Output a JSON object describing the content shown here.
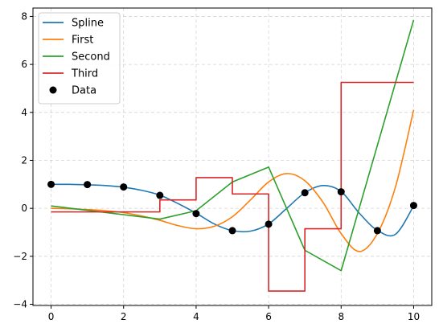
{
  "chart_data": {
    "type": "line",
    "title": "",
    "xlabel": "",
    "ylabel": "",
    "xlim": [
      -0.5,
      10.5
    ],
    "ylim": [
      -4.05,
      8.35
    ],
    "xticks": [
      0,
      2,
      4,
      6,
      8,
      10
    ],
    "yticks": [
      -4,
      -2,
      0,
      2,
      4,
      6,
      8
    ],
    "grid": true,
    "legend_position": "top-left",
    "series": [
      {
        "name": "Spline",
        "kind": "curve",
        "color": "#1f77b4",
        "x": [
          0,
          0.5,
          1,
          1.5,
          2,
          2.5,
          3,
          3.5,
          4,
          4.5,
          5,
          5.5,
          6,
          6.5,
          7,
          7.5,
          8,
          8.5,
          9,
          9.5,
          10
        ],
        "y": [
          1.0,
          1.0,
          0.98,
          0.95,
          0.88,
          0.75,
          0.55,
          0.2,
          -0.2,
          -0.65,
          -0.93,
          -0.95,
          -0.65,
          0.0,
          0.65,
          0.95,
          0.7,
          -0.2,
          -0.92,
          -1.08,
          0.1
        ]
      },
      {
        "name": "First",
        "kind": "curve",
        "color": "#ff7f0e",
        "x": [
          0,
          0.5,
          1,
          1.5,
          2,
          2.5,
          3,
          3.5,
          4,
          4.5,
          5,
          5.5,
          6,
          6.5,
          7,
          7.5,
          8,
          8.5,
          9,
          9.5,
          10
        ],
        "y": [
          0.0,
          -0.02,
          -0.05,
          -0.1,
          -0.18,
          -0.32,
          -0.5,
          -0.72,
          -0.85,
          -0.75,
          -0.35,
          0.35,
          1.1,
          1.45,
          1.15,
          0.25,
          -1.05,
          -1.8,
          -1.05,
          0.9,
          4.1
        ]
      },
      {
        "name": "Second",
        "kind": "polyline",
        "color": "#2ca02c",
        "x": [
          0,
          3,
          4,
          5,
          6,
          7,
          8,
          10
        ],
        "y": [
          0.1,
          -0.45,
          -0.1,
          1.1,
          1.72,
          -1.75,
          -2.6,
          7.85
        ]
      },
      {
        "name": "Third",
        "kind": "step",
        "color": "#d62728",
        "x": [
          0,
          3,
          3,
          4,
          4,
          5,
          5,
          6,
          6,
          7,
          7,
          8,
          8,
          10
        ],
        "y": [
          -0.15,
          -0.15,
          0.35,
          0.35,
          1.28,
          1.28,
          0.6,
          0.6,
          -3.45,
          -3.45,
          -0.85,
          -0.85,
          5.25,
          5.25
        ]
      },
      {
        "name": "Data",
        "kind": "points",
        "color": "#000000",
        "x": [
          0,
          1,
          2,
          3,
          4,
          5,
          6,
          7,
          8,
          9,
          10
        ],
        "y": [
          1.0,
          0.99,
          0.89,
          0.54,
          -0.22,
          -0.93,
          -0.66,
          0.65,
          0.69,
          -0.93,
          0.12
        ]
      }
    ]
  }
}
